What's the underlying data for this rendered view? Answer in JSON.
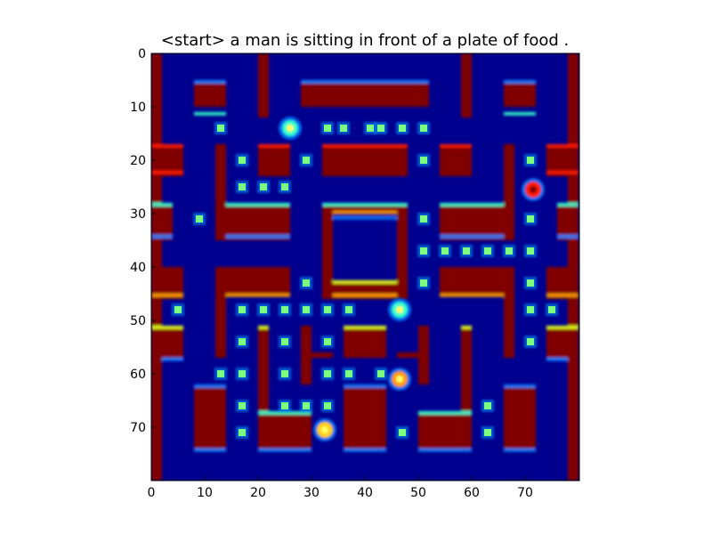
{
  "title": "<start> a man is sitting in front of a plate of food .",
  "colormap": "jet",
  "colors": {
    "background": "#00008f",
    "wall": "#800000",
    "wall_edge_red": "#ff1a00",
    "wall_edge_orange": "#ff9900",
    "wall_edge_yellow": "#e6ff1a",
    "wall_edge_cyan": "#33ffcc",
    "wall_edge_blue": "#0080ff",
    "pellet": "#7fff80",
    "pellet_glow": "#00a0ff"
  },
  "axes": {
    "x_ticks": [
      "0",
      "10",
      "20",
      "30",
      "40",
      "50",
      "60",
      "70"
    ],
    "y_ticks": [
      "0",
      "10",
      "20",
      "30",
      "40",
      "50",
      "60",
      "70"
    ],
    "x_range": [
      0,
      80
    ],
    "y_range": [
      0,
      80
    ]
  },
  "sprites": [
    {
      "name": "pacman",
      "x": 26,
      "y": 14,
      "color": "#33ffcc"
    },
    {
      "name": "ghost-red",
      "x": 71.5,
      "y": 25.5,
      "color": "#ff1a00"
    },
    {
      "name": "ghost-cyan",
      "x": 46.5,
      "y": 48,
      "color": "#33ffcc"
    },
    {
      "name": "ghost-orange",
      "x": 46.5,
      "y": 61,
      "color": "#ff9900"
    },
    {
      "name": "ghost-yellow",
      "x": 32.5,
      "y": 70.5,
      "color": "#ffcc00"
    }
  ],
  "pellets": [
    [
      13,
      14
    ],
    [
      33,
      14
    ],
    [
      36,
      14
    ],
    [
      41,
      14
    ],
    [
      43,
      14
    ],
    [
      47,
      14
    ],
    [
      51,
      14
    ],
    [
      17,
      20
    ],
    [
      29,
      20
    ],
    [
      51,
      20
    ],
    [
      71,
      20
    ],
    [
      17,
      25
    ],
    [
      21,
      25
    ],
    [
      25,
      25
    ],
    [
      9,
      31
    ],
    [
      51,
      31
    ],
    [
      71,
      31
    ],
    [
      51,
      37
    ],
    [
      55,
      37
    ],
    [
      59,
      37
    ],
    [
      63,
      37
    ],
    [
      67,
      37
    ],
    [
      71,
      37
    ],
    [
      29,
      43
    ],
    [
      51,
      43
    ],
    [
      71,
      43
    ],
    [
      5,
      48
    ],
    [
      17,
      48
    ],
    [
      21,
      48
    ],
    [
      25,
      48
    ],
    [
      29,
      48
    ],
    [
      33,
      48
    ],
    [
      37,
      48
    ],
    [
      71,
      48
    ],
    [
      75,
      48
    ],
    [
      17,
      54
    ],
    [
      25,
      54
    ],
    [
      33,
      54
    ],
    [
      71,
      54
    ],
    [
      13,
      60
    ],
    [
      17,
      60
    ],
    [
      25,
      60
    ],
    [
      33,
      60
    ],
    [
      37,
      60
    ],
    [
      43,
      60
    ],
    [
      17,
      66
    ],
    [
      25,
      66
    ],
    [
      29,
      66
    ],
    [
      33,
      66
    ],
    [
      63,
      66
    ],
    [
      17,
      71
    ],
    [
      47,
      71
    ],
    [
      63,
      71
    ]
  ]
}
